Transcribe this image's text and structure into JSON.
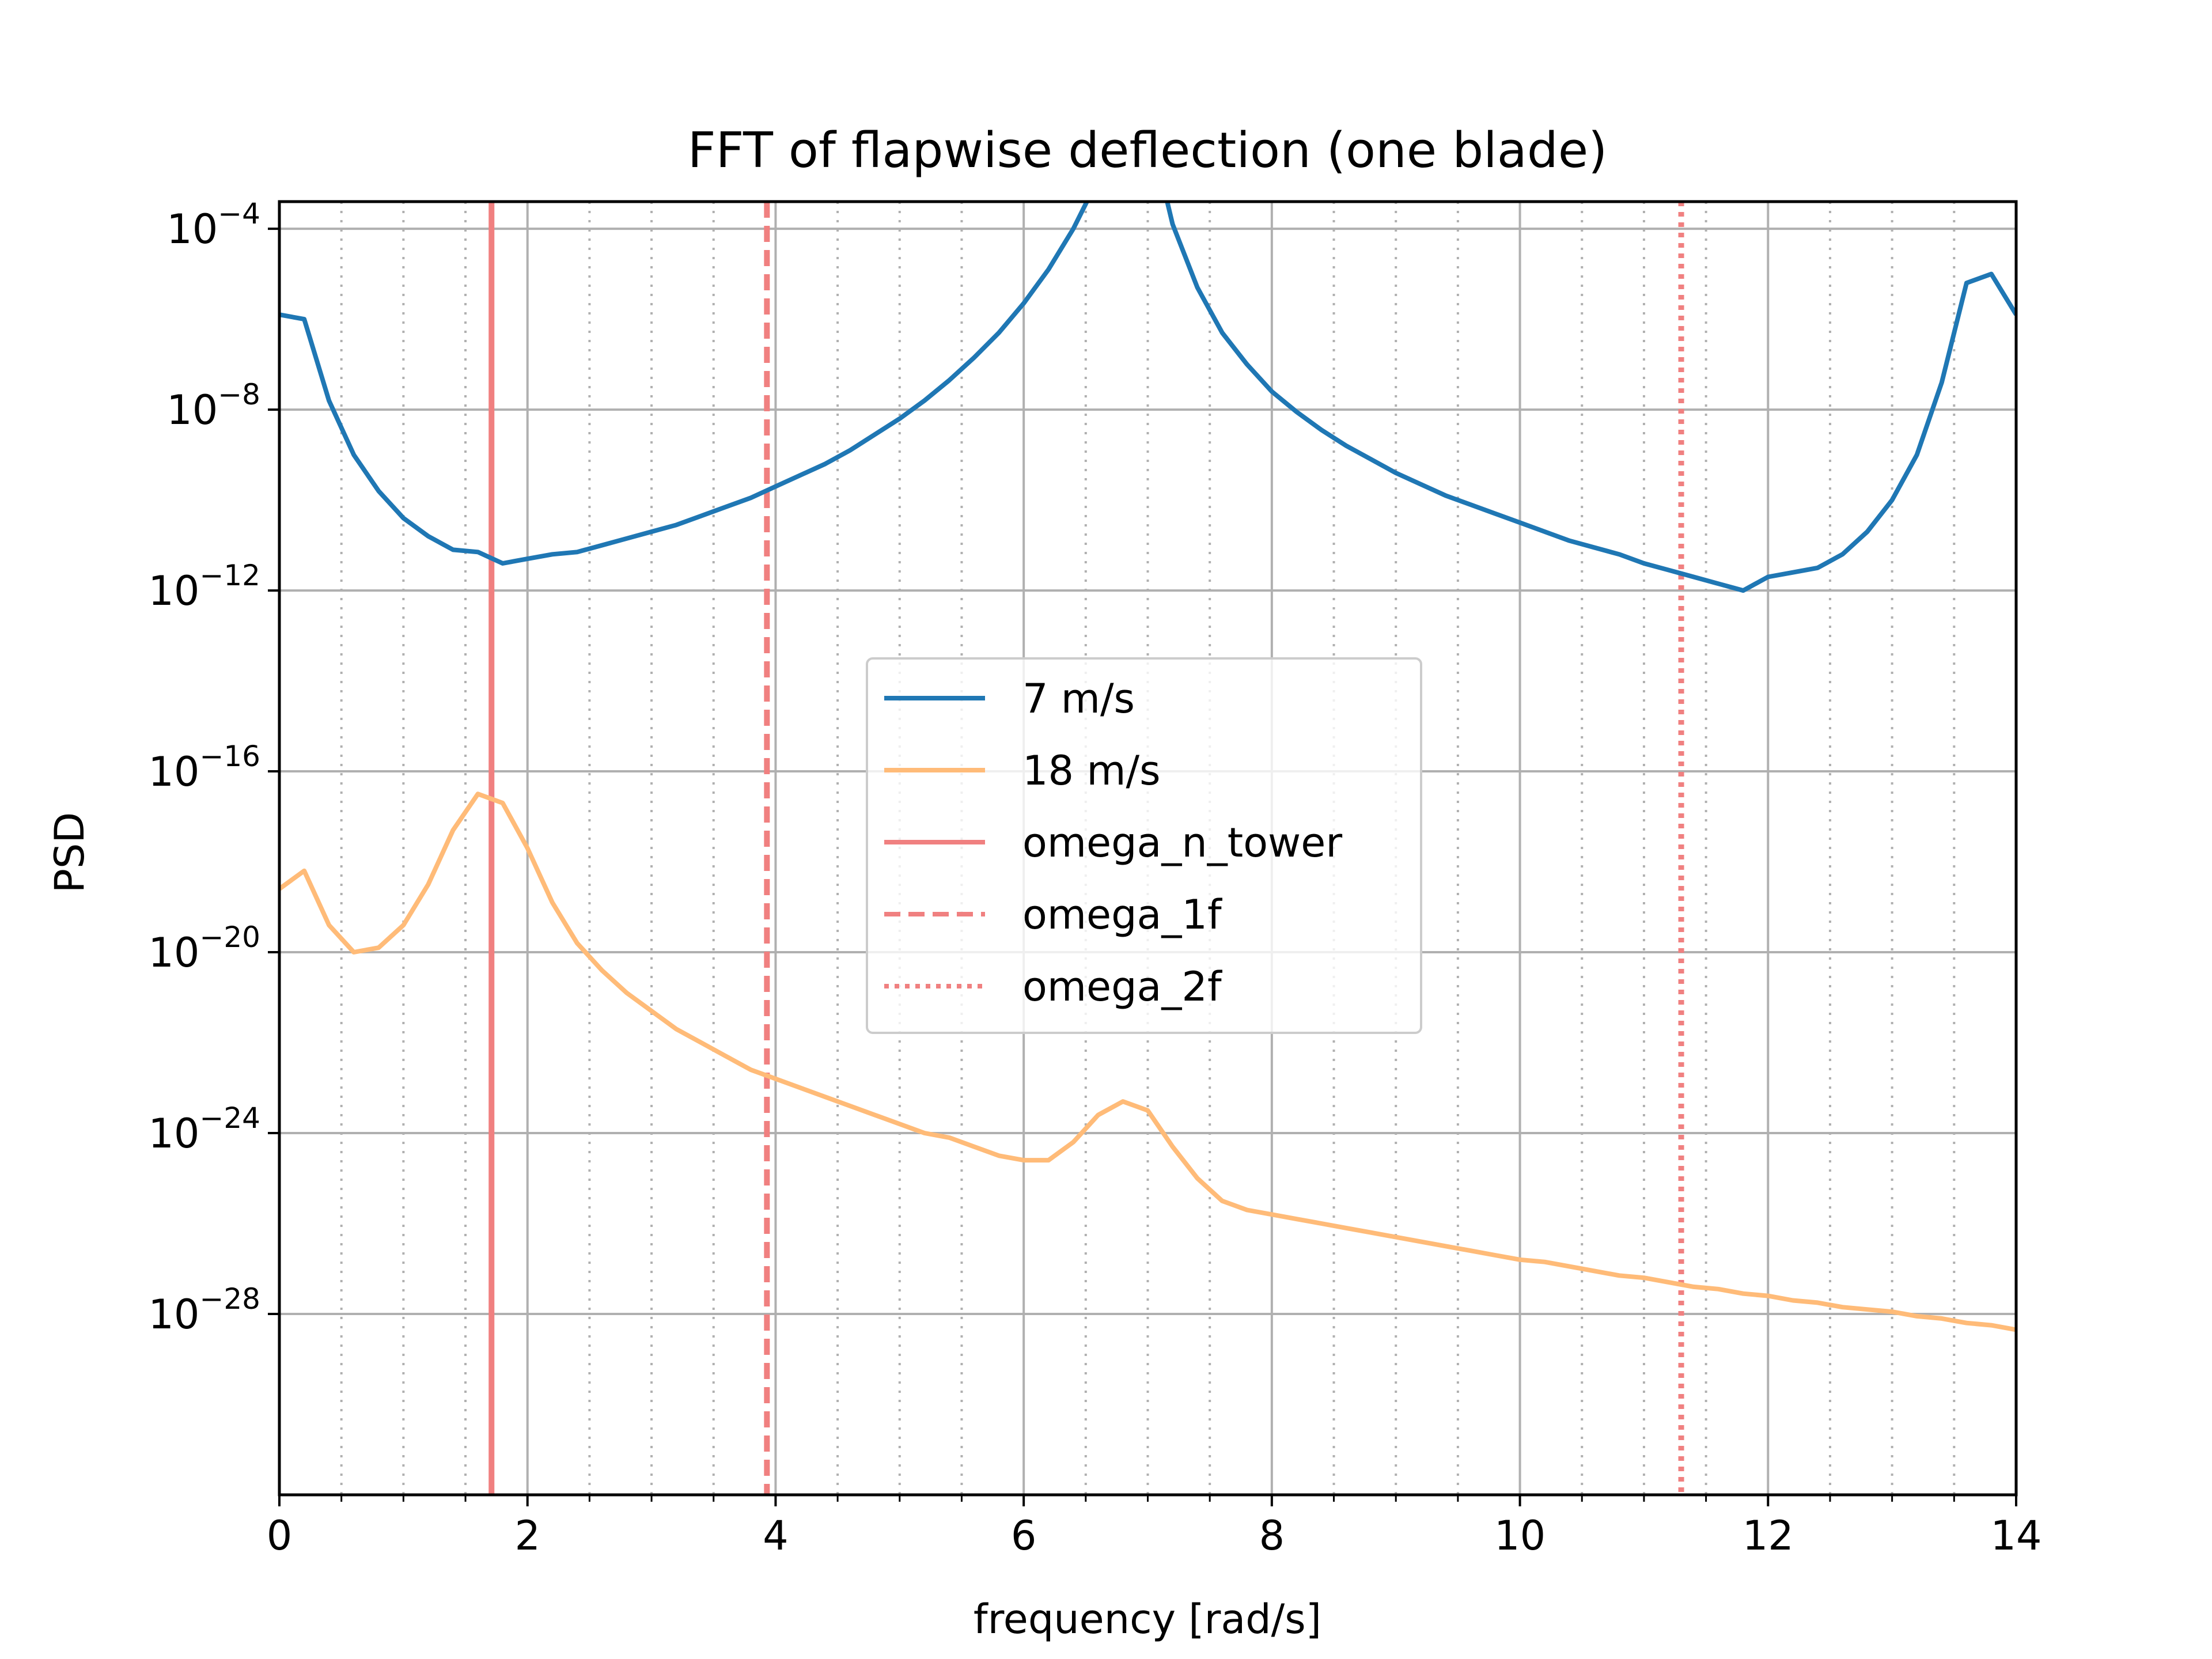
{
  "chart_data": {
    "type": "line",
    "title": "FFT of flapwise deflection (one blade)",
    "xlabel": "frequency [rad/s]",
    "ylabel": "PSD",
    "xlim": [
      0,
      14
    ],
    "ylim_log10": [
      -32,
      -3.4
    ],
    "y_scale": "log",
    "grid": true,
    "legend_placement": "center",
    "x_ticks": [
      0,
      2,
      4,
      6,
      8,
      10,
      12,
      14
    ],
    "x_tick_labels": [
      "0",
      "2",
      "4",
      "6",
      "8",
      "10",
      "12",
      "14"
    ],
    "y_ticks": [
      {
        "base": "10",
        "exp": "−4",
        "value_log10": -4
      },
      {
        "base": "10",
        "exp": "−8",
        "value_log10": -8
      },
      {
        "base": "10",
        "exp": "−12",
        "value_log10": -12
      },
      {
        "base": "10",
        "exp": "−16",
        "value_log10": -16
      },
      {
        "base": "10",
        "exp": "−20",
        "value_log10": -20
      },
      {
        "base": "10",
        "exp": "−24",
        "value_log10": -24
      },
      {
        "base": "10",
        "exp": "−28",
        "value_log10": -28
      }
    ],
    "series": [
      {
        "name": "7 m/s",
        "color": "#1f77b4",
        "style": "solid",
        "points_log10": [
          [
            0,
            -5.9
          ],
          [
            0.2,
            -6.0
          ],
          [
            0.4,
            -7.8
          ],
          [
            0.6,
            -9.0
          ],
          [
            0.8,
            -9.8
          ],
          [
            1.0,
            -10.4
          ],
          [
            1.2,
            -10.8
          ],
          [
            1.4,
            -11.1
          ],
          [
            1.6,
            -11.15
          ],
          [
            1.8,
            -11.4
          ],
          [
            2.0,
            -11.3
          ],
          [
            2.2,
            -11.2
          ],
          [
            2.4,
            -11.15
          ],
          [
            2.6,
            -11.0
          ],
          [
            2.8,
            -10.85
          ],
          [
            3.0,
            -10.7
          ],
          [
            3.2,
            -10.55
          ],
          [
            3.4,
            -10.35
          ],
          [
            3.6,
            -10.15
          ],
          [
            3.8,
            -9.95
          ],
          [
            4.0,
            -9.7
          ],
          [
            4.2,
            -9.45
          ],
          [
            4.4,
            -9.2
          ],
          [
            4.6,
            -8.9
          ],
          [
            4.8,
            -8.55
          ],
          [
            5.0,
            -8.2
          ],
          [
            5.2,
            -7.8
          ],
          [
            5.4,
            -7.35
          ],
          [
            5.6,
            -6.85
          ],
          [
            5.8,
            -6.3
          ],
          [
            6.0,
            -5.65
          ],
          [
            6.2,
            -4.9
          ],
          [
            6.4,
            -4.0
          ],
          [
            6.6,
            -2.9
          ],
          [
            6.8,
            -1.3
          ],
          [
            7.0,
            -1.6
          ],
          [
            7.2,
            -3.9
          ],
          [
            7.4,
            -5.3
          ],
          [
            7.6,
            -6.3
          ],
          [
            7.8,
            -7.0
          ],
          [
            8.0,
            -7.6
          ],
          [
            8.2,
            -8.05
          ],
          [
            8.4,
            -8.45
          ],
          [
            8.6,
            -8.8
          ],
          [
            8.8,
            -9.1
          ],
          [
            9.0,
            -9.4
          ],
          [
            9.2,
            -9.65
          ],
          [
            9.4,
            -9.9
          ],
          [
            9.6,
            -10.1
          ],
          [
            9.8,
            -10.3
          ],
          [
            10.0,
            -10.5
          ],
          [
            10.2,
            -10.7
          ],
          [
            10.4,
            -10.9
          ],
          [
            10.6,
            -11.05
          ],
          [
            10.8,
            -11.2
          ],
          [
            11.0,
            -11.4
          ],
          [
            11.2,
            -11.55
          ],
          [
            11.4,
            -11.7
          ],
          [
            11.6,
            -11.85
          ],
          [
            11.8,
            -12.0
          ],
          [
            12.0,
            -11.7
          ],
          [
            12.2,
            -11.6
          ],
          [
            12.4,
            -11.5
          ],
          [
            12.6,
            -11.2
          ],
          [
            12.8,
            -10.7
          ],
          [
            13.0,
            -10.0
          ],
          [
            13.2,
            -9.0
          ],
          [
            13.4,
            -7.4
          ],
          [
            13.6,
            -5.2
          ],
          [
            13.8,
            -5.0
          ],
          [
            14.0,
            -5.9
          ]
        ]
      },
      {
        "name": "18 m/s",
        "color": "#ffbb78",
        "style": "solid",
        "points_log10": [
          [
            0,
            -18.6
          ],
          [
            0.2,
            -18.2
          ],
          [
            0.4,
            -19.4
          ],
          [
            0.6,
            -20.0
          ],
          [
            0.8,
            -19.9
          ],
          [
            1.0,
            -19.4
          ],
          [
            1.2,
            -18.5
          ],
          [
            1.4,
            -17.3
          ],
          [
            1.6,
            -16.5
          ],
          [
            1.8,
            -16.7
          ],
          [
            2.0,
            -17.7
          ],
          [
            2.2,
            -18.9
          ],
          [
            2.4,
            -19.8
          ],
          [
            2.6,
            -20.4
          ],
          [
            2.8,
            -20.9
          ],
          [
            3.0,
            -21.3
          ],
          [
            3.2,
            -21.7
          ],
          [
            3.4,
            -22.0
          ],
          [
            3.6,
            -22.3
          ],
          [
            3.8,
            -22.6
          ],
          [
            4.0,
            -22.8
          ],
          [
            4.2,
            -23.0
          ],
          [
            4.4,
            -23.2
          ],
          [
            4.6,
            -23.4
          ],
          [
            4.8,
            -23.6
          ],
          [
            5.0,
            -23.8
          ],
          [
            5.2,
            -24.0
          ],
          [
            5.4,
            -24.1
          ],
          [
            5.6,
            -24.3
          ],
          [
            5.8,
            -24.5
          ],
          [
            6.0,
            -24.6
          ],
          [
            6.2,
            -24.6
          ],
          [
            6.4,
            -24.2
          ],
          [
            6.6,
            -23.6
          ],
          [
            6.8,
            -23.3
          ],
          [
            7.0,
            -23.5
          ],
          [
            7.2,
            -24.3
          ],
          [
            7.4,
            -25.0
          ],
          [
            7.6,
            -25.5
          ],
          [
            7.8,
            -25.7
          ],
          [
            8.0,
            -25.8
          ],
          [
            8.2,
            -25.9
          ],
          [
            8.4,
            -26.0
          ],
          [
            8.6,
            -26.1
          ],
          [
            8.8,
            -26.2
          ],
          [
            9.0,
            -26.3
          ],
          [
            9.2,
            -26.4
          ],
          [
            9.4,
            -26.5
          ],
          [
            9.6,
            -26.6
          ],
          [
            9.8,
            -26.7
          ],
          [
            10.0,
            -26.8
          ],
          [
            10.2,
            -26.85
          ],
          [
            10.4,
            -26.95
          ],
          [
            10.6,
            -27.05
          ],
          [
            10.8,
            -27.15
          ],
          [
            11.0,
            -27.2
          ],
          [
            11.2,
            -27.3
          ],
          [
            11.4,
            -27.4
          ],
          [
            11.6,
            -27.45
          ],
          [
            11.8,
            -27.55
          ],
          [
            12.0,
            -27.6
          ],
          [
            12.2,
            -27.7
          ],
          [
            12.4,
            -27.75
          ],
          [
            12.6,
            -27.85
          ],
          [
            12.8,
            -27.9
          ],
          [
            13.0,
            -27.95
          ],
          [
            13.2,
            -28.05
          ],
          [
            13.4,
            -28.1
          ],
          [
            13.6,
            -28.2
          ],
          [
            13.8,
            -28.25
          ],
          [
            14.0,
            -28.35
          ]
        ]
      }
    ],
    "vlines": [
      {
        "name": "omega_n_tower",
        "x": 1.71,
        "color": "#f08080",
        "style": "solid"
      },
      {
        "name": "omega_1f",
        "x": 3.93,
        "color": "#f08080",
        "style": "dashed"
      },
      {
        "name": "omega_2f",
        "x": 11.3,
        "color": "#f08080",
        "style": "dotted"
      }
    ],
    "legend": [
      {
        "label": "7 m/s",
        "color": "#1f77b4",
        "style": "solid"
      },
      {
        "label": "18 m/s",
        "color": "#ffbb78",
        "style": "solid"
      },
      {
        "label": "omega_n_tower",
        "color": "#f08080",
        "style": "solid"
      },
      {
        "label": "omega_1f",
        "color": "#f08080",
        "style": "dashed"
      },
      {
        "label": "omega_2f",
        "color": "#f08080",
        "style": "dotted"
      }
    ]
  }
}
